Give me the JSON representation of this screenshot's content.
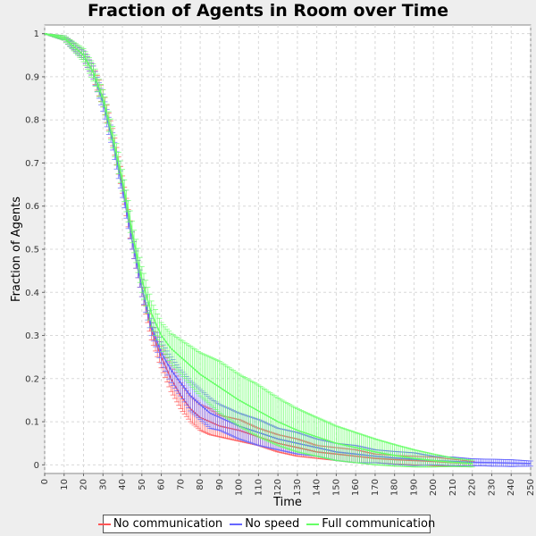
{
  "chart_data": {
    "type": "line",
    "title": "Fraction of Agents in Room over Time",
    "xlabel": "Time",
    "ylabel": "Fraction of Agents",
    "xlim": [
      0,
      250
    ],
    "ylim": [
      -0.02,
      1.02
    ],
    "xticks": [
      0,
      10,
      20,
      30,
      40,
      50,
      60,
      70,
      80,
      90,
      100,
      110,
      120,
      130,
      140,
      150,
      160,
      170,
      180,
      190,
      200,
      210,
      220,
      230,
      240,
      250
    ],
    "yticks": [
      0,
      0.1,
      0.2,
      0.3,
      0.4,
      0.5,
      0.6,
      0.7,
      0.8,
      0.9,
      1
    ],
    "ytick_labels": [
      "0",
      "0.1",
      "0.2",
      "0.3",
      "0.4",
      "0.5",
      "0.6",
      "0.7",
      "0.8",
      "0.9",
      "1"
    ],
    "grid": true,
    "error_bars": true,
    "legend_position": "bottom",
    "series": [
      {
        "name": "No communication",
        "color": "#ff5555",
        "x": [
          0,
          10,
          20,
          25,
          30,
          35,
          40,
          45,
          50,
          55,
          60,
          65,
          70,
          75,
          80,
          85,
          90,
          95,
          100,
          110,
          120,
          130,
          140,
          150,
          160,
          170,
          180,
          190,
          200,
          210,
          220
        ],
        "y": [
          1.0,
          0.99,
          0.95,
          0.91,
          0.85,
          0.76,
          0.65,
          0.52,
          0.41,
          0.31,
          0.25,
          0.2,
          0.16,
          0.13,
          0.11,
          0.1,
          0.09,
          0.085,
          0.08,
          0.065,
          0.05,
          0.04,
          0.03,
          0.025,
          0.02,
          0.015,
          0.012,
          0.01,
          0.008,
          0.005,
          0.003
        ],
        "err": [
          0.0,
          0.005,
          0.01,
          0.015,
          0.02,
          0.02,
          0.02,
          0.02,
          0.02,
          0.02,
          0.025,
          0.03,
          0.03,
          0.03,
          0.03,
          0.03,
          0.025,
          0.025,
          0.025,
          0.02,
          0.02,
          0.02,
          0.015,
          0.015,
          0.015,
          0.01,
          0.01,
          0.01,
          0.01,
          0.008,
          0.005
        ]
      },
      {
        "name": "No speed",
        "color": "#6666ff",
        "x": [
          0,
          10,
          20,
          25,
          30,
          35,
          40,
          45,
          50,
          55,
          60,
          65,
          70,
          75,
          80,
          85,
          90,
          95,
          100,
          110,
          120,
          130,
          140,
          150,
          160,
          170,
          180,
          190,
          200,
          210,
          220,
          230,
          240,
          250
        ],
        "y": [
          1.0,
          0.99,
          0.95,
          0.91,
          0.84,
          0.75,
          0.64,
          0.52,
          0.41,
          0.32,
          0.26,
          0.22,
          0.19,
          0.16,
          0.14,
          0.12,
          0.11,
          0.1,
          0.09,
          0.075,
          0.06,
          0.05,
          0.04,
          0.03,
          0.025,
          0.02,
          0.016,
          0.013,
          0.01,
          0.008,
          0.006,
          0.005,
          0.004,
          0.003
        ],
        "err": [
          0.0,
          0.005,
          0.01,
          0.015,
          0.02,
          0.02,
          0.02,
          0.02,
          0.02,
          0.02,
          0.025,
          0.03,
          0.03,
          0.035,
          0.035,
          0.035,
          0.03,
          0.03,
          0.03,
          0.03,
          0.025,
          0.025,
          0.02,
          0.02,
          0.02,
          0.015,
          0.015,
          0.015,
          0.01,
          0.01,
          0.008,
          0.008,
          0.008,
          0.006
        ]
      },
      {
        "name": "Full communication",
        "color": "#66ff66",
        "x": [
          0,
          10,
          20,
          25,
          30,
          35,
          40,
          45,
          50,
          55,
          60,
          65,
          70,
          75,
          80,
          85,
          90,
          95,
          100,
          110,
          120,
          130,
          140,
          150,
          160,
          170,
          180,
          190,
          200,
          210,
          220
        ],
        "y": [
          1.0,
          0.99,
          0.95,
          0.91,
          0.85,
          0.76,
          0.66,
          0.54,
          0.43,
          0.35,
          0.3,
          0.27,
          0.25,
          0.23,
          0.21,
          0.195,
          0.18,
          0.165,
          0.15,
          0.125,
          0.1,
          0.08,
          0.065,
          0.05,
          0.04,
          0.03,
          0.022,
          0.015,
          0.01,
          0.006,
          0.003
        ],
        "err": [
          0.0,
          0.005,
          0.015,
          0.02,
          0.02,
          0.025,
          0.025,
          0.025,
          0.03,
          0.03,
          0.03,
          0.035,
          0.04,
          0.045,
          0.05,
          0.055,
          0.06,
          0.06,
          0.06,
          0.06,
          0.055,
          0.05,
          0.045,
          0.04,
          0.035,
          0.03,
          0.025,
          0.02,
          0.015,
          0.01,
          0.008
        ]
      }
    ]
  }
}
